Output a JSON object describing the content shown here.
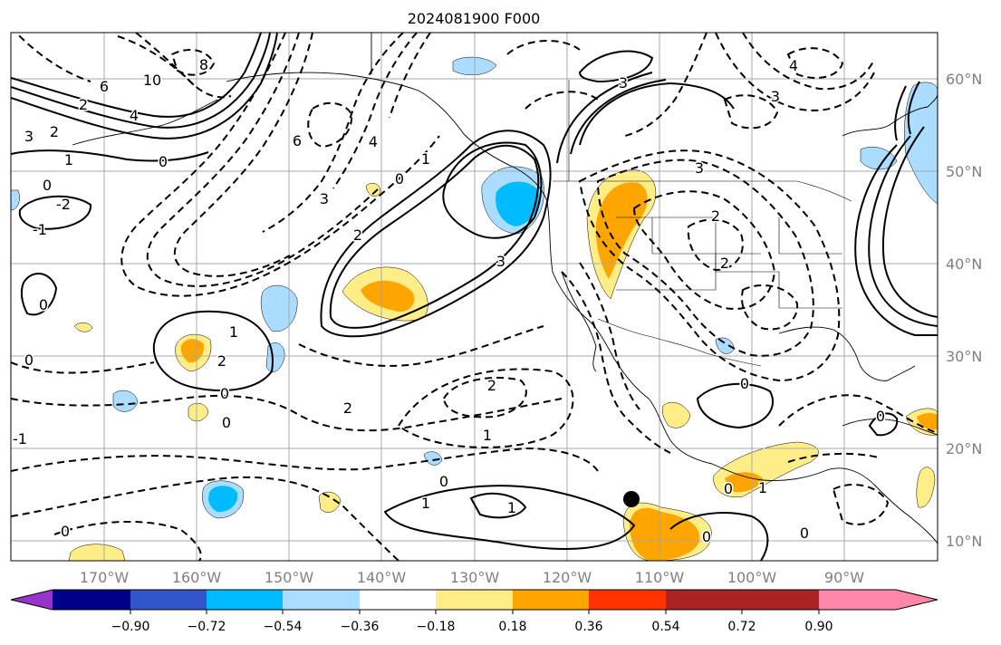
{
  "title": "2024081900 F000",
  "map": {
    "lon_ticks": [
      "170°W",
      "160°W",
      "150°W",
      "140°W",
      "130°W",
      "120°W",
      "110°W",
      "100°W",
      "90°W"
    ],
    "lat_ticks": [
      "60°N",
      "50°N",
      "40°N",
      "30°N",
      "20°N",
      "10°N"
    ],
    "colors": {
      "positive_light": "#ffee88",
      "positive_mid": "#ffa500",
      "negative_light": "#aaddff",
      "negative_mid": "#00bbff",
      "marker": "#000000"
    },
    "contour_labels": [
      "10",
      "8",
      "6",
      "4",
      "3",
      "2",
      "2",
      "1",
      "0",
      "0",
      "-2",
      "-1",
      "0",
      "1",
      "2",
      "3",
      "4",
      "6",
      "3",
      "2",
      "0",
      "1",
      "3",
      "2",
      "0",
      "1",
      "0",
      "2",
      "1",
      "0",
      "0",
      "-1",
      "1",
      "0",
      "0",
      "0",
      "0",
      "1",
      "0",
      "2",
      "2",
      "3",
      "3",
      "4",
      "0"
    ]
  },
  "colorbar": {
    "colors": [
      "#9933cc",
      "#000088",
      "#3355cc",
      "#00bbff",
      "#aaddff",
      "#ffffff",
      "#ffee88",
      "#ffa500",
      "#ff3300",
      "#aa2222",
      "#ff88aa"
    ],
    "labels": [
      "−0.90",
      "−0.72",
      "−0.54",
      "−0.36",
      "−0.18",
      "0.18",
      "0.36",
      "0.54",
      "0.72",
      "0.90"
    ]
  }
}
